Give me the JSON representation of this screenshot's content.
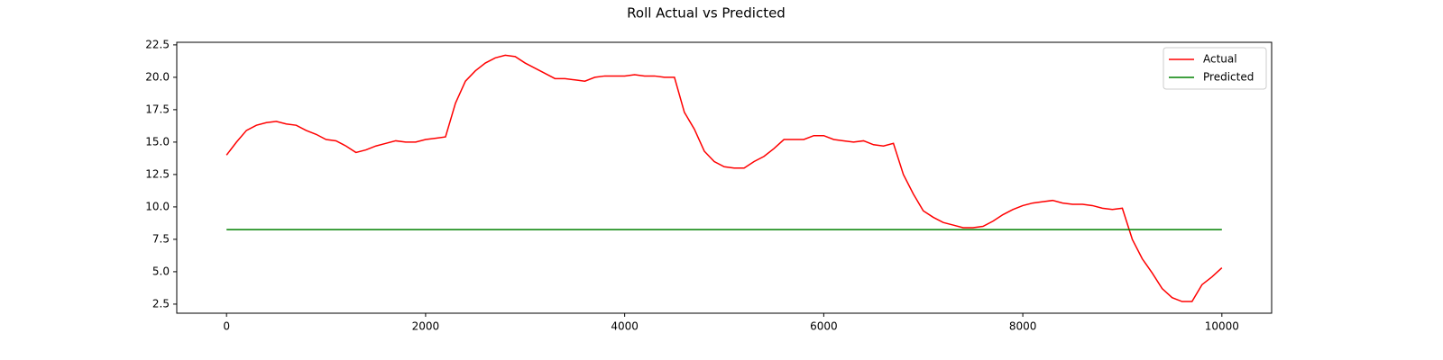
{
  "chart_data": {
    "type": "line",
    "title": "Roll Actual vs Predicted",
    "x": [
      0,
      100,
      200,
      300,
      400,
      500,
      600,
      700,
      800,
      900,
      1000,
      1100,
      1200,
      1300,
      1400,
      1500,
      1600,
      1700,
      1800,
      1900,
      2000,
      2100,
      2200,
      2300,
      2400,
      2500,
      2600,
      2700,
      2800,
      2900,
      3000,
      3100,
      3200,
      3300,
      3400,
      3500,
      3600,
      3700,
      3800,
      3900,
      4000,
      4100,
      4200,
      4300,
      4400,
      4500,
      4600,
      4700,
      4800,
      4900,
      5000,
      5100,
      5200,
      5300,
      5400,
      5500,
      5600,
      5700,
      5800,
      5900,
      6000,
      6100,
      6200,
      6300,
      6400,
      6500,
      6600,
      6700,
      6800,
      6900,
      7000,
      7100,
      7200,
      7300,
      7400,
      7500,
      7600,
      7700,
      7800,
      7900,
      8000,
      8100,
      8200,
      8300,
      8400,
      8500,
      8600,
      8700,
      8800,
      8900,
      9000,
      9100,
      9200,
      9300,
      9400,
      9500,
      9600,
      9700,
      9800,
      9900,
      10000
    ],
    "series": [
      {
        "name": "Actual",
        "color": "#ff0000",
        "values": [
          14.0,
          15.0,
          15.9,
          16.3,
          16.5,
          16.6,
          16.4,
          16.3,
          15.9,
          15.6,
          15.2,
          15.1,
          14.7,
          14.2,
          14.4,
          14.7,
          14.9,
          15.1,
          15.0,
          15.0,
          15.2,
          15.3,
          15.4,
          18.0,
          19.7,
          20.5,
          21.1,
          21.5,
          21.7,
          21.6,
          21.1,
          20.7,
          20.3,
          19.9,
          19.9,
          19.8,
          19.7,
          20.0,
          20.1,
          20.1,
          20.1,
          20.2,
          20.1,
          20.1,
          20.0,
          20.0,
          17.3,
          16.0,
          14.3,
          13.5,
          13.1,
          13.0,
          13.0,
          13.5,
          13.9,
          14.5,
          15.2,
          15.2,
          15.2,
          15.5,
          15.5,
          15.2,
          15.1,
          15.0,
          15.1,
          14.8,
          14.7,
          14.9,
          12.5,
          11.0,
          9.7,
          9.2,
          8.8,
          8.6,
          8.4,
          8.4,
          8.5,
          8.9,
          9.4,
          9.8,
          10.1,
          10.3,
          10.4,
          10.5,
          10.3,
          10.2,
          10.2,
          10.1,
          9.9,
          9.8,
          9.9,
          7.5,
          6.0,
          4.9,
          3.7,
          3.0,
          2.7,
          2.7,
          4.0,
          4.6,
          5.3
        ]
      },
      {
        "name": "Predicted",
        "color": "#008000",
        "values": [
          8.25,
          8.25,
          8.25,
          8.25,
          8.25,
          8.25,
          8.25,
          8.25,
          8.25,
          8.25,
          8.25,
          8.25,
          8.25,
          8.25,
          8.25,
          8.25,
          8.25,
          8.25,
          8.25,
          8.25,
          8.25,
          8.25,
          8.25,
          8.25,
          8.25,
          8.25,
          8.25,
          8.25,
          8.25,
          8.25,
          8.25,
          8.25,
          8.25,
          8.25,
          8.25,
          8.25,
          8.25,
          8.25,
          8.25,
          8.25,
          8.25,
          8.25,
          8.25,
          8.25,
          8.25,
          8.25,
          8.25,
          8.25,
          8.25,
          8.25,
          8.25,
          8.25,
          8.25,
          8.25,
          8.25,
          8.25,
          8.25,
          8.25,
          8.25,
          8.25,
          8.25,
          8.25,
          8.25,
          8.25,
          8.25,
          8.25,
          8.25,
          8.25,
          8.25,
          8.25,
          8.25,
          8.25,
          8.25,
          8.25,
          8.25,
          8.25,
          8.25,
          8.25,
          8.25,
          8.25,
          8.25,
          8.25,
          8.25,
          8.25,
          8.25,
          8.25,
          8.25,
          8.25,
          8.25,
          8.25,
          8.25,
          8.25,
          8.25,
          8.25,
          8.25,
          8.25,
          8.25,
          8.25,
          8.25,
          8.25,
          8.25
        ]
      }
    ],
    "xlim": [
      -500,
      10500
    ],
    "ylim": [
      1.8,
      22.7
    ],
    "xticks": [
      0,
      2000,
      4000,
      6000,
      8000,
      10000
    ],
    "yticks": [
      2.5,
      {
        "value": 5,
        "label": "5.0"
      },
      7.5,
      {
        "value": 10,
        "label": "10.0"
      },
      12.5,
      {
        "value": 15,
        "label": "15.0"
      },
      17.5,
      {
        "value": 20,
        "label": "20.0"
      },
      22.5
    ],
    "legend": "upper right",
    "grid": false
  }
}
